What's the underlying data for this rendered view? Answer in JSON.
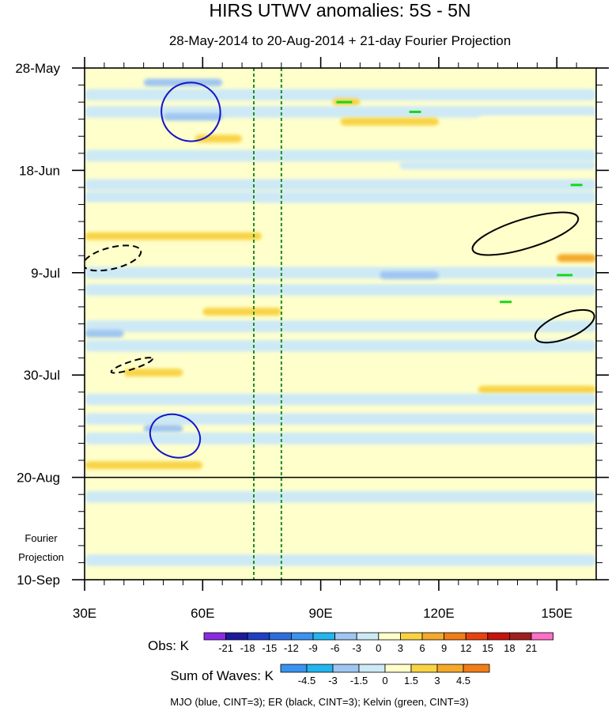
{
  "chart_data": {
    "type": "heatmap",
    "title": "HIRS UTWV anomalies: 5S - 5N",
    "subtitle": "28-May-2014 to 20-Aug-2014 + 21-day Fourier Projection",
    "x_axis": {
      "range": [
        30,
        160
      ],
      "ticks": [
        30,
        60,
        90,
        120,
        150
      ],
      "tick_labels": [
        "30E",
        "60E",
        "90E",
        "120E",
        "150E"
      ]
    },
    "y_axis": {
      "range_days": [
        0,
        105
      ],
      "ticks_days": [
        0,
        21,
        42,
        63,
        84,
        105
      ],
      "tick_labels": [
        "28-May",
        "18-Jun",
        "9-Jul",
        "30-Jul",
        "20-Aug",
        "10-Sep"
      ],
      "projection_label": [
        "Fourier",
        "Projection"
      ]
    },
    "observation_end_day": 84,
    "reference_longitudes": [
      73,
      80
    ],
    "obs_scale": {
      "label": "Obs: K",
      "levels": [
        -21,
        -18,
        -15,
        -12,
        -9,
        -6,
        -3,
        0,
        3,
        6,
        9,
        12,
        15,
        18,
        21
      ],
      "colors": [
        "#8a2be2",
        "#1a1a9e",
        "#1f3fc7",
        "#2e6ddf",
        "#3a94ef",
        "#22b5ee",
        "#9fc6f1",
        "#cde9f6",
        "#ffffcc",
        "#f8d344",
        "#f4a92c",
        "#f07d18",
        "#e8420f",
        "#c7130e",
        "#a02020",
        "#ff6ec7"
      ]
    },
    "waves_scale": {
      "label": "Sum of Waves: K",
      "levels": [
        -4.5,
        -3,
        -1.5,
        0,
        1.5,
        3,
        4.5
      ],
      "colors": [
        "#3a94ef",
        "#22b5ee",
        "#9fc6f1",
        "#cde9f6",
        "#ffffcc",
        "#f8d344",
        "#f4a92c",
        "#f07d18"
      ]
    },
    "anomaly_bands": [
      {
        "day": 1.5,
        "lon_start": 30,
        "lon_end": 160,
        "value": 1.5
      },
      {
        "day": 3,
        "lon_start": 45,
        "lon_end": 65,
        "value": -4.5
      },
      {
        "day": 5.5,
        "lon_start": 30,
        "lon_end": 160,
        "value": -1.5
      },
      {
        "day": 7,
        "lon_start": 93,
        "lon_end": 100,
        "value": 3
      },
      {
        "day": 9,
        "lon_start": 30,
        "lon_end": 160,
        "value": -1.5
      },
      {
        "day": 10,
        "lon_start": 50,
        "lon_end": 65,
        "value": -4.5
      },
      {
        "day": 11,
        "lon_start": 95,
        "lon_end": 120,
        "value": 3
      },
      {
        "day": 11,
        "lon_start": 130,
        "lon_end": 160,
        "value": 1.5
      },
      {
        "day": 14,
        "lon_start": 30,
        "lon_end": 160,
        "value": 1.5
      },
      {
        "day": 14.5,
        "lon_start": 58,
        "lon_end": 70,
        "value": 3
      },
      {
        "day": 18,
        "lon_start": 30,
        "lon_end": 160,
        "value": -1.5
      },
      {
        "day": 20,
        "lon_start": 110,
        "lon_end": 160,
        "value": -3
      },
      {
        "day": 24,
        "lon_start": 30,
        "lon_end": 160,
        "value": -1.5
      },
      {
        "day": 26.5,
        "lon_start": 30,
        "lon_end": 160,
        "value": -1.5
      },
      {
        "day": 29,
        "lon_start": 30,
        "lon_end": 75,
        "value": 1.5
      },
      {
        "day": 31,
        "lon_start": 30,
        "lon_end": 160,
        "value": 1.5
      },
      {
        "day": 34.5,
        "lon_start": 30,
        "lon_end": 75,
        "value": 3
      },
      {
        "day": 38,
        "lon_start": 30,
        "lon_end": 160,
        "value": 1.5
      },
      {
        "day": 39,
        "lon_start": 150,
        "lon_end": 160,
        "value": 6
      },
      {
        "day": 42,
        "lon_start": 30,
        "lon_end": 160,
        "value": -1.5
      },
      {
        "day": 42.5,
        "lon_start": 105,
        "lon_end": 120,
        "value": -4.5
      },
      {
        "day": 45.5,
        "lon_start": 30,
        "lon_end": 160,
        "value": -1.5
      },
      {
        "day": 49,
        "lon_start": 30,
        "lon_end": 160,
        "value": 1.5
      },
      {
        "day": 50,
        "lon_start": 60,
        "lon_end": 80,
        "value": 3
      },
      {
        "day": 53,
        "lon_start": 30,
        "lon_end": 160,
        "value": -1.5
      },
      {
        "day": 54.5,
        "lon_start": 30,
        "lon_end": 40,
        "value": -4.5
      },
      {
        "day": 57,
        "lon_start": 30,
        "lon_end": 160,
        "value": -1.5
      },
      {
        "day": 60.5,
        "lon_start": 30,
        "lon_end": 75,
        "value": 1.5
      },
      {
        "day": 62.5,
        "lon_start": 40,
        "lon_end": 55,
        "value": 3
      },
      {
        "day": 64,
        "lon_start": 75,
        "lon_end": 160,
        "value": 1.5
      },
      {
        "day": 66,
        "lon_start": 130,
        "lon_end": 160,
        "value": 3
      },
      {
        "day": 68,
        "lon_start": 30,
        "lon_end": 160,
        "value": -1.5
      },
      {
        "day": 72,
        "lon_start": 30,
        "lon_end": 160,
        "value": -1.5
      },
      {
        "day": 74,
        "lon_start": 45,
        "lon_end": 55,
        "value": -4.5
      },
      {
        "day": 76,
        "lon_start": 30,
        "lon_end": 160,
        "value": -1.5
      },
      {
        "day": 80,
        "lon_start": 30,
        "lon_end": 160,
        "value": 1.5
      },
      {
        "day": 81.5,
        "lon_start": 30,
        "lon_end": 60,
        "value": 3
      },
      {
        "day": 88,
        "lon_start": 30,
        "lon_end": 160,
        "value": -1.5
      },
      {
        "day": 94,
        "lon_start": 30,
        "lon_end": 55,
        "value": 1.5
      },
      {
        "day": 101,
        "lon_start": 30,
        "lon_end": 160,
        "value": -1.5
      }
    ],
    "contours": {
      "legend": "MJO (blue, CINT=3); ER (black, CINT=3); Kelvin (green, CINT=3)",
      "mjo": [
        {
          "lon": 57,
          "day": 9,
          "rlon": 7.5,
          "rday": 6,
          "angle": 36
        },
        {
          "lon": 53,
          "day": 75.5,
          "rlon": 6.5,
          "rday": 4.3,
          "angle": 22
        }
      ],
      "er": [
        {
          "lon": 142,
          "day": 34,
          "rlon": 14,
          "rday": 3,
          "angle": -17
        },
        {
          "lon": 152,
          "day": 53,
          "rlon": 8,
          "rday": 2.5,
          "angle": -22
        },
        {
          "lon": 37,
          "day": 39,
          "rlon": 7.5,
          "rday": 2.2,
          "angle": -14,
          "dashed": true
        },
        {
          "lon": 42,
          "day": 61,
          "rlon": 5.5,
          "rday": 0.8,
          "angle": -18,
          "dashed": true
        }
      ],
      "kelvin": [
        {
          "lon": 96,
          "day": 7,
          "len": 4
        },
        {
          "lon": 114,
          "day": 9,
          "len": 3
        },
        {
          "lon": 152,
          "day": 42.5,
          "len": 4
        },
        {
          "lon": 137,
          "day": 48,
          "len": 3
        },
        {
          "lon": 155,
          "day": 24,
          "len": 3
        }
      ]
    }
  }
}
